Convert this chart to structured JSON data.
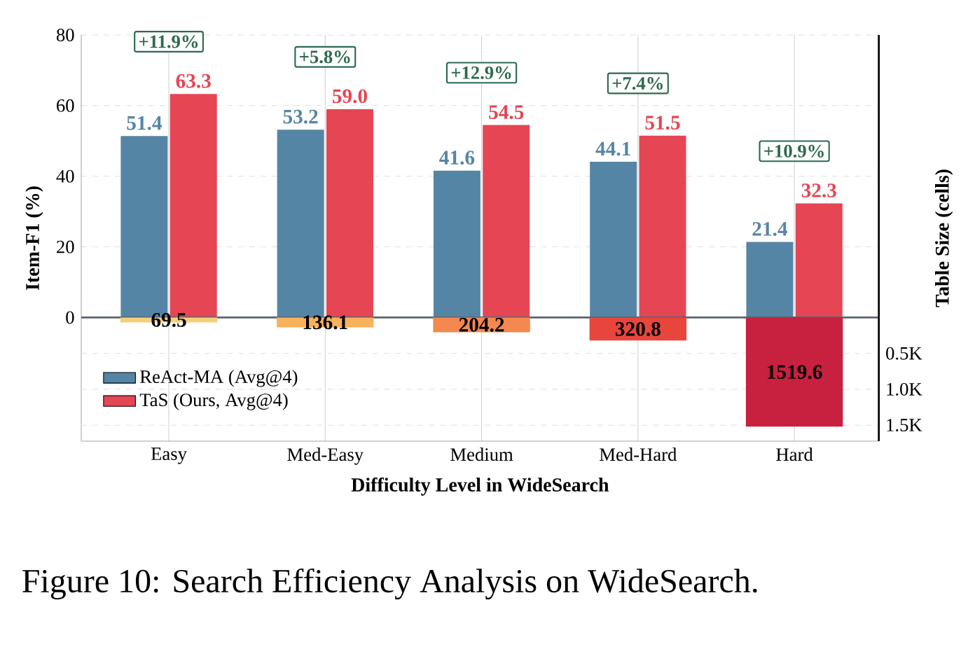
{
  "chart_data": {
    "type": "bar",
    "categories": [
      "Easy",
      "Med-Easy",
      "Medium",
      "Med-Hard",
      "Hard"
    ],
    "series": [
      {
        "name": "ReAct-MA (Avg@4)",
        "color": "#5585a5",
        "values": [
          51.4,
          53.2,
          41.6,
          44.1,
          21.4
        ],
        "value_labels": [
          "51.4",
          "53.2",
          "41.6",
          "44.1",
          "21.4"
        ]
      },
      {
        "name": "TaS (Ours, Avg@4)",
        "color": "#e64553",
        "values": [
          63.3,
          59.0,
          54.5,
          51.5,
          32.3
        ],
        "value_labels": [
          "63.3",
          "59.0",
          "54.5",
          "51.5",
          "32.3"
        ]
      },
      {
        "axis": "y2",
        "colors": [
          "#f5d07a",
          "#f9b25c",
          "#f5884e",
          "#e8453c",
          "#c8203f"
        ],
        "values": [
          69.5,
          136.1,
          204.2,
          320.8,
          1519.6
        ],
        "value_labels": [
          "69.5",
          "136.1",
          "204.2",
          "320.8",
          "1519.6"
        ]
      }
    ],
    "xlabel": "Difficulty Level in WideSearch",
    "ylabel": "Item-F1 (%)",
    "y2label": "Table Size (cells)",
    "ylim": [
      -35,
      80
    ],
    "yticks": [
      0,
      20,
      40,
      60,
      80
    ],
    "y2lim": [
      1722,
      -3936
    ],
    "y2ticks": [
      {
        "value": 500,
        "label": "0.5K"
      },
      {
        "value": 1000,
        "label": "1.0K"
      },
      {
        "value": 1500,
        "label": "1.5K"
      }
    ],
    "ref_lines": [
      {
        "axis": "y",
        "value": 0,
        "color": "#5c6370"
      }
    ],
    "grid": true,
    "legend": "bottom left",
    "annotations": [
      "+11.9%",
      "+5.8%",
      "+12.9%",
      "+7.4%",
      "+10.9%",
      "Figure 10: Search Efficiency Analysis on WideSearch."
    ]
  }
}
